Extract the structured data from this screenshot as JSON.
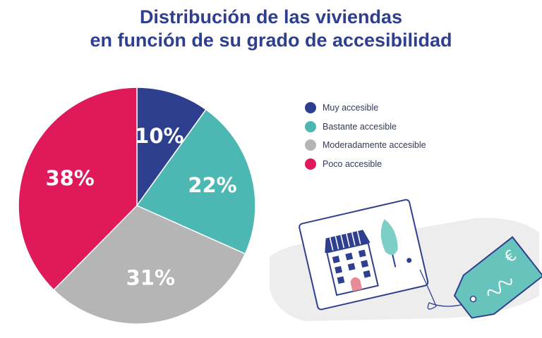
{
  "title_lines": [
    "Distribución de las viviendas",
    "en función de su grado de accesibilidad"
  ],
  "chart_data": {
    "type": "pie",
    "title": "Distribución de las viviendas en función de su grado de accesibilidad",
    "categories": [
      "Muy accesible",
      "Bastante accesible",
      "Moderadamente accesible",
      "Poco accesible"
    ],
    "values": [
      10,
      22,
      31,
      38
    ],
    "value_labels": [
      "10%",
      "22%",
      "31%",
      "38%"
    ],
    "colors": [
      "#2e3f8f",
      "#4db8b3",
      "#b5b5b5",
      "#e0195a"
    ],
    "start_angle": "12 o'clock",
    "direction": "clockwise",
    "legend_position": "right"
  },
  "legend": [
    {
      "label": "Muy accesible",
      "color": "#2e3f8f"
    },
    {
      "label": "Bastante accesible",
      "color": "#4db8b3"
    },
    {
      "label": "Moderadamente accesible",
      "color": "#b5b5b5"
    },
    {
      "label": "Poco accesible",
      "color": "#e0195a"
    }
  ],
  "illustration": {
    "name": "house-for-sale-with-price-tag",
    "tag_symbol": "€"
  }
}
